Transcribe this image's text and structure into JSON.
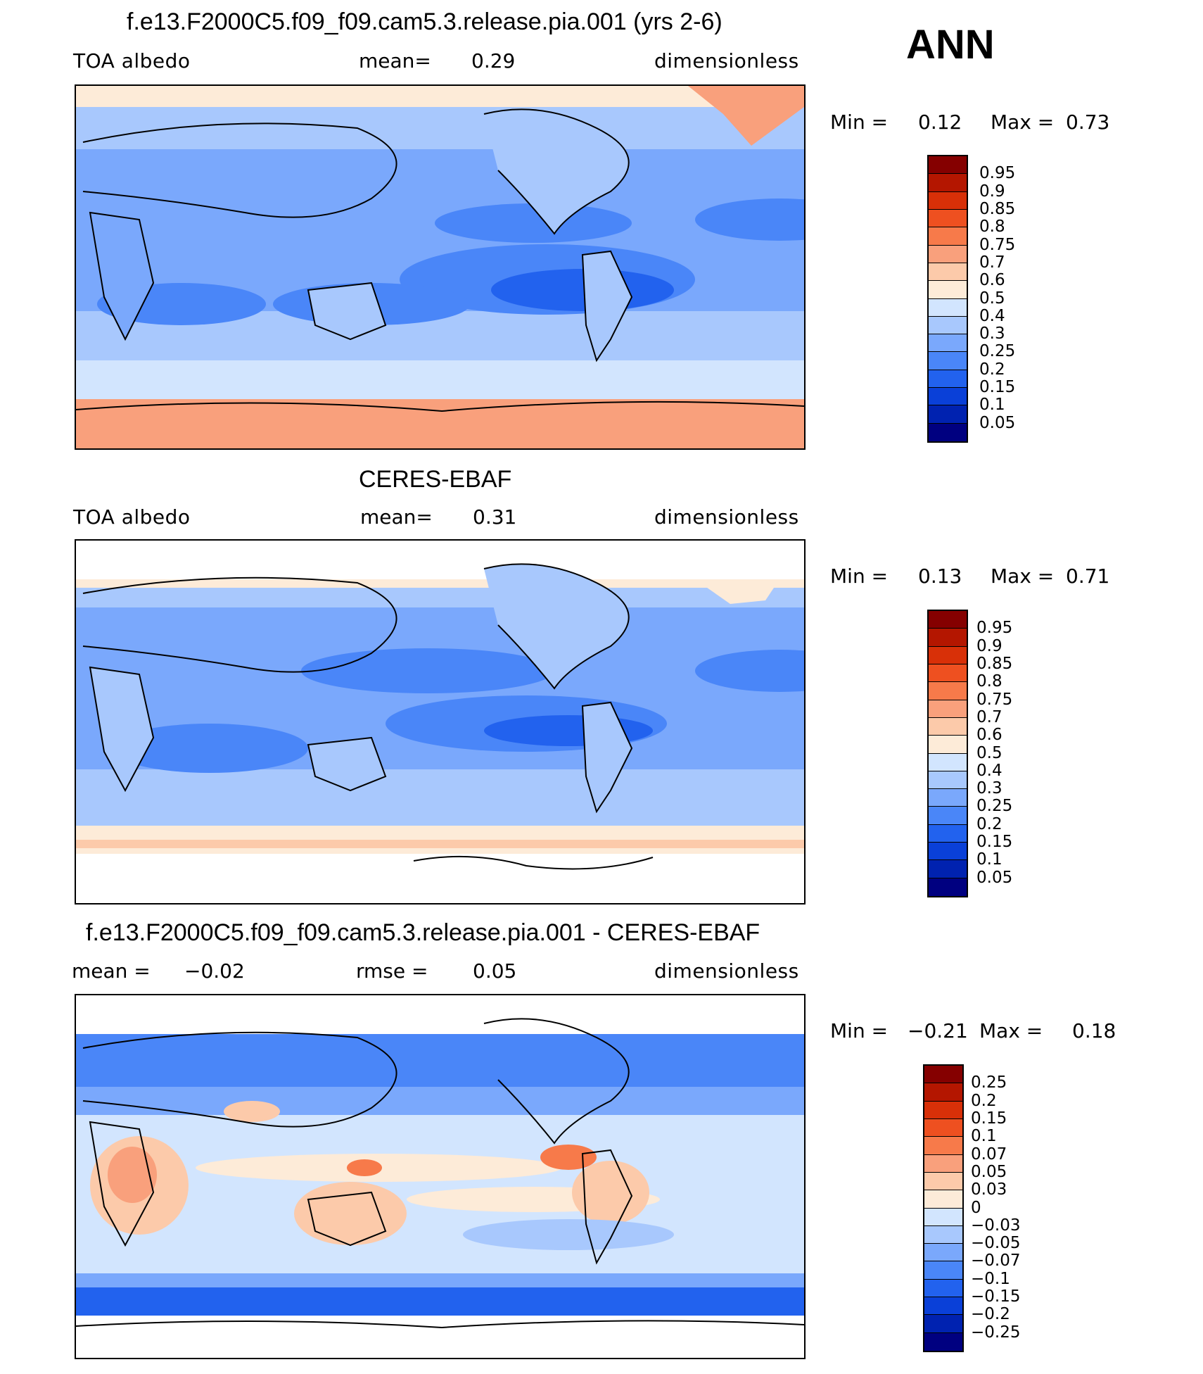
{
  "season_label": "ANN",
  "colors": {
    "abs_scale": [
      "#000080",
      "#0022b0",
      "#0a40d8",
      "#2262ee",
      "#4a86f8",
      "#7aa8fc",
      "#a8c8fd",
      "#d2e5fe",
      "#fdebd8",
      "#fccaaa",
      "#f9a07c",
      "#f77a4a",
      "#ee5020",
      "#d83008",
      "#b41600",
      "#850000"
    ],
    "diff_scale": [
      "#000080",
      "#0022b0",
      "#0a40d8",
      "#2262ee",
      "#4a86f8",
      "#7aa8fc",
      "#a8c8fd",
      "#d2e5fe",
      "#fdebd8",
      "#fccaaa",
      "#f9a07c",
      "#f77a4a",
      "#ee5020",
      "#d83008",
      "#b41600",
      "#850000"
    ],
    "coastline": "#000000"
  },
  "panels": [
    {
      "title": "f.e13.F2000C5.f09_f09.cam5.3.release.pia.001 (yrs 2-6)",
      "variable": "TOA albedo",
      "left_stat_label": "mean=",
      "left_stat_value": "0.29",
      "units": "dimensionless",
      "minmax": {
        "min_label": "Min =",
        "min_value": "0.12",
        "max_label": "Max =",
        "max_value": "0.73"
      },
      "colorbar_labels": [
        "0.95",
        "0.9",
        "0.85",
        "0.8",
        "0.75",
        "0.7",
        "0.6",
        "0.5",
        "0.4",
        "0.3",
        "0.25",
        "0.2",
        "0.15",
        "0.1",
        "0.05"
      ]
    },
    {
      "title": "CERES-EBAF",
      "variable": "TOA albedo",
      "left_stat_label": "mean=",
      "left_stat_value": "0.31",
      "units": "dimensionless",
      "minmax": {
        "min_label": "Min =",
        "min_value": "0.13",
        "max_label": "Max =",
        "max_value": "0.71"
      },
      "colorbar_labels": [
        "0.95",
        "0.9",
        "0.85",
        "0.8",
        "0.75",
        "0.7",
        "0.6",
        "0.5",
        "0.4",
        "0.3",
        "0.25",
        "0.2",
        "0.15",
        "0.1",
        "0.05"
      ]
    },
    {
      "title": "f.e13.F2000C5.f09_f09.cam5.3.release.pia.001 - CERES-EBAF",
      "left_stat_label": "mean =",
      "left_stat_value": "−0.02",
      "mid_stat_label": "rmse =",
      "mid_stat_value": "0.05",
      "units": "dimensionless",
      "minmax": {
        "min_label": "Min =",
        "min_value": "−0.21",
        "max_label": "Max =",
        "max_value": "0.18"
      },
      "colorbar_labels": [
        "0.25",
        "0.2",
        "0.15",
        "0.1",
        "0.07",
        "0.05",
        "0.03",
        "0",
        "−0.03",
        "−0.05",
        "−0.07",
        "−0.1",
        "−0.15",
        "−0.2",
        "−0.25"
      ]
    }
  ]
}
